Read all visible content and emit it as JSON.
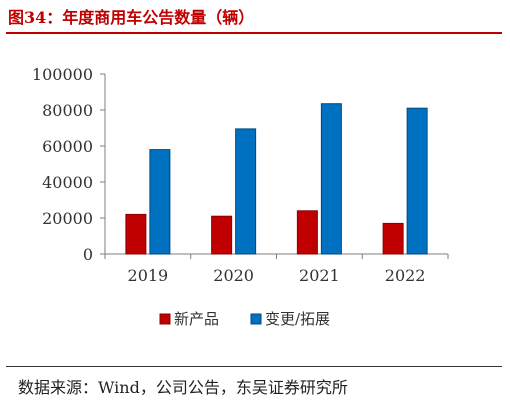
{
  "title": "图34：年度商用车公告数量（辆）",
  "source": "数据来源：Wind，公司公告，东吴证券研究所",
  "colors": {
    "title": "#c00000",
    "series_new": "#c00000",
    "series_change": "#0070c0"
  },
  "chart_data": {
    "type": "bar",
    "categories": [
      "2019",
      "2020",
      "2021",
      "2022"
    ],
    "series": [
      {
        "name": "新产品",
        "values": [
          22000,
          21000,
          24000,
          17000
        ]
      },
      {
        "name": "变更/拓展",
        "values": [
          58000,
          69500,
          83500,
          81000
        ]
      }
    ],
    "ylim": [
      0,
      100000
    ],
    "yticks": [
      0,
      20000,
      40000,
      60000,
      80000,
      100000
    ],
    "xlabel": "",
    "ylabel": "",
    "grid": false,
    "legend": "bottom-center"
  }
}
